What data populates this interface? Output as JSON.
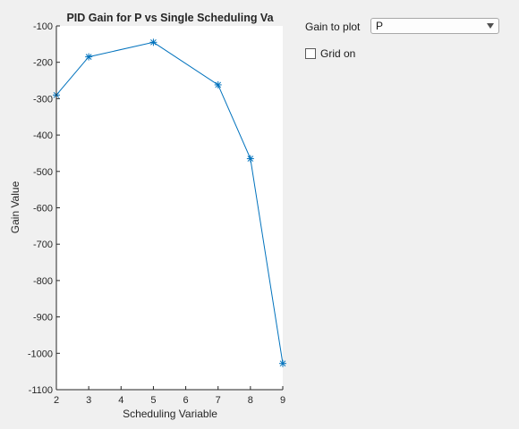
{
  "controls": {
    "gain_label": "Gain to plot",
    "gain_selected": "P",
    "grid_label": "Grid on",
    "grid_checked": false
  },
  "chart_data": {
    "type": "line",
    "title": "PID Gain for P vs Single Scheduling Va",
    "xlabel": "Scheduling Variable",
    "ylabel": "Gain Value",
    "xlim": [
      2,
      9
    ],
    "ylim": [
      -1100,
      -100
    ],
    "xticks": [
      2,
      3,
      4,
      5,
      6,
      7,
      8,
      9
    ],
    "yticks": [
      -100,
      -200,
      -300,
      -400,
      -500,
      -600,
      -700,
      -800,
      -900,
      -1000,
      -1100
    ],
    "grid": false,
    "series": [
      {
        "x": [
          2,
          3,
          5,
          7,
          8,
          9
        ],
        "y": [
          -290,
          -185,
          -145,
          -262,
          -465,
          -1028
        ],
        "color": "#0072BD",
        "marker": "asterisk"
      }
    ]
  }
}
